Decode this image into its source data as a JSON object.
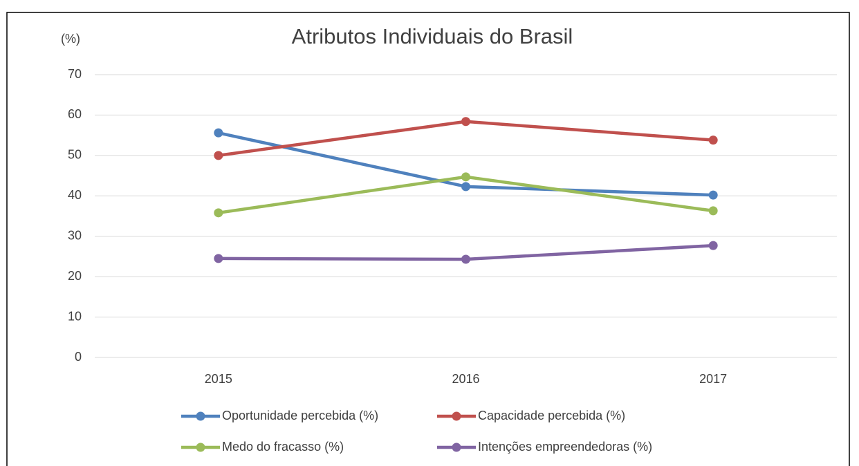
{
  "chart_data": {
    "type": "line",
    "title": "Atributos Individuais do Brasil",
    "y_label": "(%)",
    "categories": [
      "2015",
      "2016",
      "2017"
    ],
    "series": [
      {
        "name": "Oportunidade percebida (%)",
        "color": "#4f81bd",
        "values": [
          55.6,
          42.3,
          40.2
        ]
      },
      {
        "name": "Capacidade percebida (%)",
        "color": "#c0504d",
        "values": [
          50.0,
          58.4,
          53.8
        ]
      },
      {
        "name": "Medo do fracasso (%)",
        "color": "#9bbb59",
        "values": [
          35.8,
          44.7,
          36.3
        ]
      },
      {
        "name": "Intenções empreendedoras (%)",
        "color": "#8064a2",
        "values": [
          24.5,
          24.3,
          27.7
        ]
      }
    ],
    "ylim": [
      0,
      70
    ],
    "yticks": [
      0,
      10,
      20,
      30,
      40,
      50,
      60,
      70
    ],
    "grid": true,
    "legend": "bottom"
  }
}
